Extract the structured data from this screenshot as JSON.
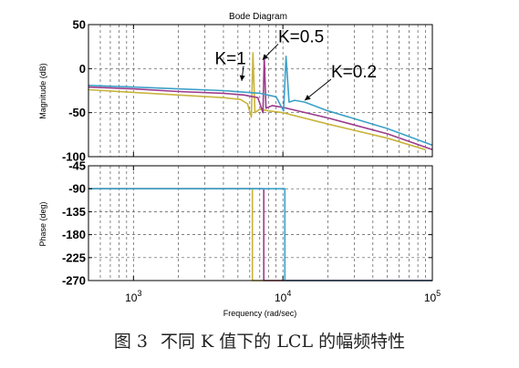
{
  "chart_data": {
    "type": "line",
    "title": "Bode Diagram",
    "xlabel": "Frequency  (rad/sec)",
    "xscale": "log",
    "xlim": [
      500,
      100000
    ],
    "xticks": [
      {
        "value": 1000,
        "base": "10",
        "exp": "3"
      },
      {
        "value": 10000,
        "base": "10",
        "exp": "4"
      },
      {
        "value": 100000,
        "base": "10",
        "exp": "5"
      }
    ],
    "panels": [
      {
        "name": "magnitude",
        "ylabel": "Magnitude (dB)",
        "ylim": [
          -100,
          50
        ],
        "yticks": [
          50,
          0,
          -50,
          -100
        ],
        "grid": true,
        "series": [
          {
            "name": "K=1",
            "color": "#c8b43c",
            "x": [
              500,
              1000,
              2000,
              4000,
              5200,
              5800,
              6150,
              6300,
              6500,
              7000,
              8000,
              10000,
              20000,
              50000,
              90000
            ],
            "y": [
              -24,
              -27,
              -30,
              -33,
              -35,
              -40,
              -55,
              18,
              -50,
              -46,
              -48,
              -50,
              -63,
              -79,
              -92
            ]
          },
          {
            "name": "K=0.5",
            "color": "#9c3c8c",
            "x": [
              500,
              1000,
              2000,
              4000,
              5500,
              6800,
              7350,
              7500,
              7700,
              8500,
              10000,
              20000,
              50000,
              100000
            ],
            "y": [
              -21,
              -23,
              -26,
              -28,
              -30,
              -33,
              -50,
              15,
              -45,
              -42,
              -44,
              -56,
              -74,
              -92
            ]
          },
          {
            "name": "K=0.2",
            "color": "#3ca0c8",
            "x": [
              500,
              1000,
              2000,
              4000,
              7000,
              9000,
              10100,
              10500,
              11000,
              12000,
              14000,
              20000,
              50000,
              100000
            ],
            "y": [
              -19,
              -21,
              -23,
              -25,
              -28,
              -32,
              -48,
              14,
              -38,
              -36,
              -38,
              -48,
              -68,
              -87
            ]
          }
        ],
        "annotations": [
          {
            "text": "K=1",
            "series": "K=1",
            "label_x": 3500,
            "label_y": 5,
            "target_x": 5300,
            "target_y": -14
          },
          {
            "text": "K=0.5",
            "series": "K=0.5",
            "label_x": 9300,
            "label_y": 30,
            "target_x": 7300,
            "target_y": 10
          },
          {
            "text": "K=0.2",
            "series": "K=0.2",
            "label_x": 21000,
            "label_y": -10,
            "target_x": 14000,
            "target_y": -36
          }
        ]
      },
      {
        "name": "phase",
        "ylabel": "Phase (deg)",
        "ylim": [
          -270,
          -45
        ],
        "yticks": [
          -45,
          -90,
          -135,
          -180,
          -225,
          -270
        ],
        "grid": true,
        "series": [
          {
            "name": "K=1",
            "color": "#c8b43c",
            "x": [
              500,
              6250,
              6250,
              6600,
              100000
            ],
            "y": [
              -90,
              -90,
              -270,
              -270,
              -270
            ]
          },
          {
            "name": "K=0.5",
            "color": "#9c3c8c",
            "x": [
              500,
              7450,
              7450,
              7900,
              100000
            ],
            "y": [
              -90,
              -90,
              -270,
              -270,
              -270
            ]
          },
          {
            "name": "K=0.2",
            "color": "#3ca0c8",
            "x": [
              500,
              10300,
              10300,
              11000,
              100000
            ],
            "y": [
              -90,
              -90,
              -270,
              -270,
              -270
            ]
          }
        ]
      }
    ]
  },
  "caption": {
    "number": "图 3",
    "text": "不同 K 值下的 LCL 的幅频特性"
  }
}
